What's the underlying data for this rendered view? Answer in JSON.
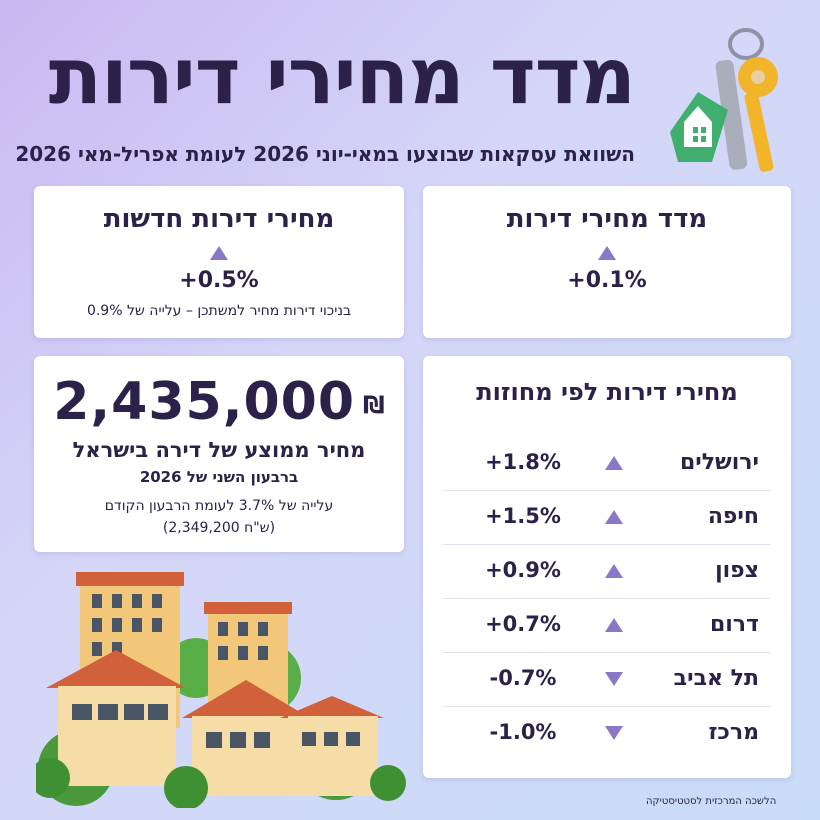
{
  "header": {
    "title": "מדד מחירי דירות",
    "subtitle": "השוואת עסקאות שבוצעו במאי-יוני 2026 לעומת אפריל-מאי 2026"
  },
  "index_card": {
    "title": "מדד מחירי דירות",
    "change": "+0.1%",
    "direction": "up"
  },
  "new_card": {
    "title": "מחירי דירות חדשות",
    "change": "+0.5%",
    "direction": "up",
    "note": "בניכוי דירות מחיר למשתכן – עלייה של 0.9%"
  },
  "price_card": {
    "value": "2,435,000",
    "currency": "₪",
    "label": "מחיר ממוצע של דירה בישראל",
    "period": "ברבעון השני של 2026",
    "note_line1": "עלייה של 3.7% לעומת הרבעון הקודם",
    "note_line2": "(2,349,200 ש\"ח)"
  },
  "districts_card": {
    "title": "מחירי דירות לפי מחוזות",
    "rows": [
      {
        "name": "ירושלים",
        "change": "+1.8%",
        "direction": "up"
      },
      {
        "name": "חיפה",
        "change": "+1.5%",
        "direction": "up"
      },
      {
        "name": "צפון",
        "change": "+0.9%",
        "direction": "up"
      },
      {
        "name": "דרום",
        "change": "+0.7%",
        "direction": "up"
      },
      {
        "name": "תל אביב",
        "change": "-0.7%",
        "direction": "down"
      },
      {
        "name": "מרכז",
        "change": "-1.0%",
        "direction": "down"
      }
    ]
  },
  "footer": {
    "source": "הלשכה המרכזית לסטטיסטיקה"
  },
  "colors": {
    "text": "#2c2148",
    "triangle": "#8a77c8",
    "card": "#ffffff"
  }
}
